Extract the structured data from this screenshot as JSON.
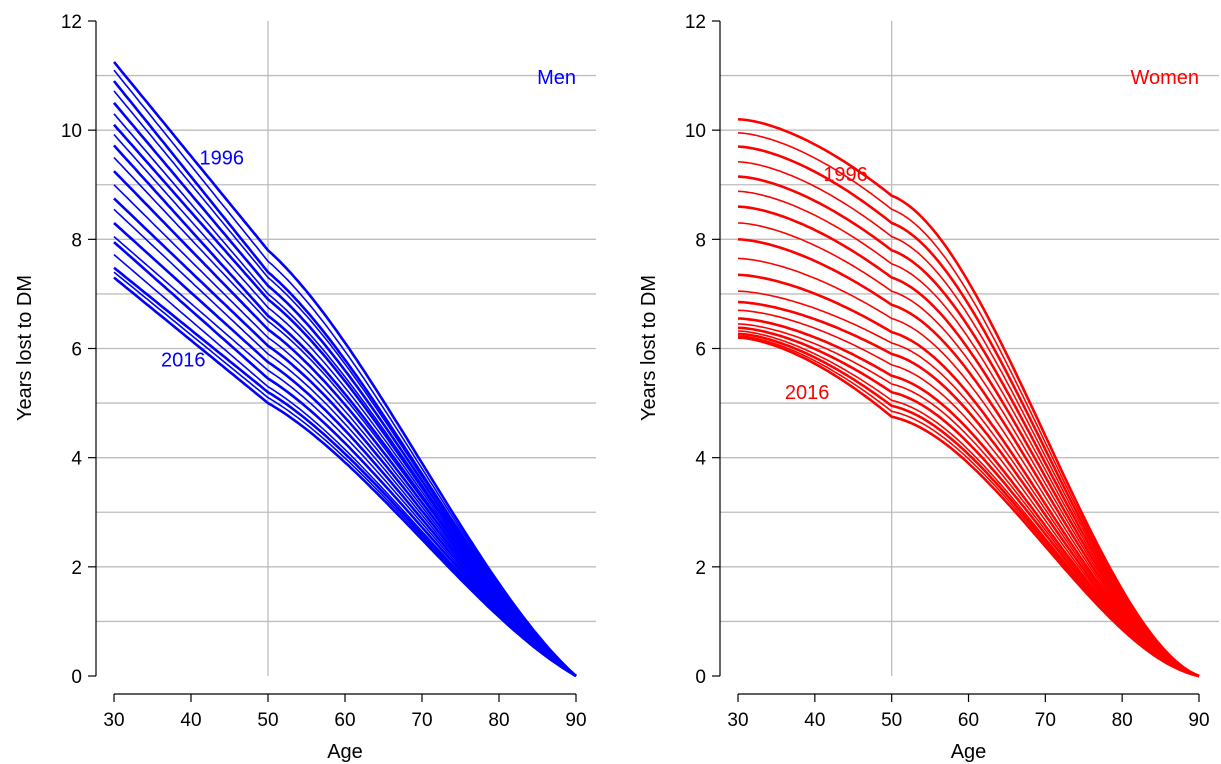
{
  "chart_data": [
    {
      "type": "line",
      "panel": "men",
      "title": "Men",
      "xlabel": "Age",
      "ylabel": "Years lost to DM",
      "xlim": [
        30,
        90
      ],
      "ylim": [
        0,
        12
      ],
      "xticks": [
        "30",
        "40",
        "50",
        "60",
        "70",
        "80",
        "90"
      ],
      "yticks": [
        "0",
        "2",
        "4",
        "6",
        "8",
        "10",
        "12"
      ],
      "color": "#0000ff",
      "grid": true,
      "annotations": [
        {
          "text": "1996",
          "x": 44,
          "y": 9.5
        },
        {
          "text": "2016",
          "x": 39,
          "y": 5.8
        }
      ],
      "year_range": [
        1996,
        2016
      ],
      "start_values": [
        11.25,
        11.1,
        10.9,
        10.72,
        10.5,
        10.3,
        10.1,
        9.92,
        9.72,
        9.5,
        9.25,
        9.0,
        8.75,
        8.55,
        8.3,
        8.05,
        7.95,
        7.72,
        7.48,
        7.4,
        7.3
      ],
      "mid_values_age50": [
        7.8,
        7.6,
        7.4,
        7.3,
        7.15,
        7.0,
        6.9,
        6.75,
        6.6,
        6.5,
        6.35,
        6.2,
        6.05,
        5.9,
        5.75,
        5.6,
        5.45,
        5.3,
        5.2,
        5.1,
        5.0
      ],
      "end_value_age90": 0
    },
    {
      "type": "line",
      "panel": "women",
      "title": "Women",
      "xlabel": "Age",
      "ylabel": "Years lost to DM",
      "xlim": [
        30,
        90
      ],
      "ylim": [
        0,
        12
      ],
      "xticks": [
        "30",
        "40",
        "50",
        "60",
        "70",
        "80",
        "90"
      ],
      "yticks": [
        "0",
        "2",
        "4",
        "6",
        "8",
        "10",
        "12"
      ],
      "color": "#ff0000",
      "grid": true,
      "annotations": [
        {
          "text": "1996",
          "x": 44,
          "y": 9.2
        },
        {
          "text": "2016",
          "x": 39,
          "y": 5.2
        }
      ],
      "year_range": [
        1996,
        2016
      ],
      "start_values": [
        10.2,
        9.95,
        9.7,
        9.42,
        9.15,
        8.88,
        8.6,
        8.3,
        8.0,
        7.65,
        7.35,
        7.05,
        6.85,
        6.7,
        6.55,
        6.45,
        6.38,
        6.32,
        6.27,
        6.23,
        6.2
      ],
      "mid_values_age50": [
        8.8,
        8.55,
        8.3,
        8.05,
        7.8,
        7.55,
        7.3,
        7.05,
        6.8,
        6.55,
        6.3,
        6.1,
        5.9,
        5.7,
        5.5,
        5.35,
        5.2,
        5.05,
        4.95,
        4.85,
        4.75
      ],
      "end_value_age90": 0
    }
  ]
}
